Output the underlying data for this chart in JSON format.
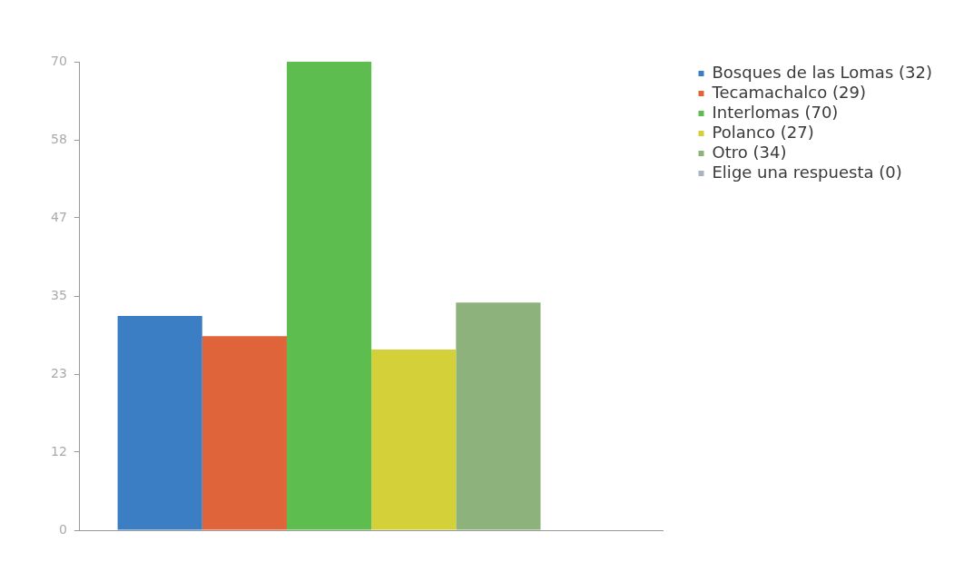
{
  "chart_data": {
    "type": "bar",
    "categories": [
      null
    ],
    "series": [
      {
        "name": "Bosques de las Lomas (32)",
        "color": "#3b7ec3",
        "values": [
          32
        ]
      },
      {
        "name": "Tecamachalco (29)",
        "color": "#e0643a",
        "values": [
          29
        ]
      },
      {
        "name": "Interlomas (70)",
        "color": "#5dbd4f",
        "values": [
          70
        ]
      },
      {
        "name": "Polanco (27)",
        "color": "#d3d03a",
        "values": [
          27
        ]
      },
      {
        "name": "Otro (34)",
        "color": "#8db27c",
        "values": [
          34
        ]
      },
      {
        "name": "Elige una respuesta (0)",
        "color": "#a9b4c2",
        "values": [
          0
        ]
      }
    ],
    "ylim": [
      0,
      70
    ],
    "yticks": [
      0,
      {
        "value": 11.67,
        "label": "12"
      },
      {
        "value": 23.33,
        "label": "23"
      },
      35,
      {
        "value": 46.67,
        "label": "47"
      },
      {
        "value": 58.33,
        "label": "58"
      },
      70
    ],
    "grid": false,
    "legend": "top right",
    "tick_labels": "y"
  }
}
